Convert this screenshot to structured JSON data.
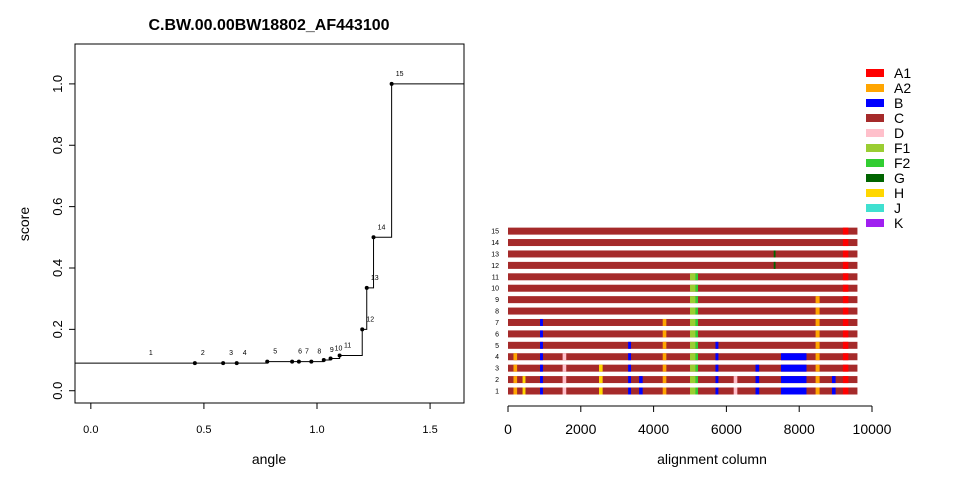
{
  "chart_data": [
    {
      "type": "line",
      "title": "C.BW.00.00BW18802_AF443100",
      "xlabel": "angle",
      "ylabel": "score",
      "xlim": [
        -0.07,
        1.65
      ],
      "ylim": [
        -0.04,
        1.13
      ],
      "xticks": [
        0.0,
        0.5,
        1.0,
        1.5
      ],
      "xtick_labels": [
        "0.0",
        "0.5",
        "1.0",
        "1.5"
      ],
      "yticks": [
        0.0,
        0.2,
        0.4,
        0.6,
        0.8,
        1.0
      ],
      "ytick_labels": [
        "0.0",
        "0.2",
        "0.4",
        "0.6",
        "0.8",
        "1.0"
      ],
      "step": "post",
      "baseline": 0.09,
      "points": [
        {
          "label": "1",
          "x": 0.23,
          "y": 0.09,
          "dot": false
        },
        {
          "label": "2",
          "x": 0.46,
          "y": 0.09,
          "dot": true
        },
        {
          "label": "3",
          "x": 0.585,
          "y": 0.09,
          "dot": true
        },
        {
          "label": "4",
          "x": 0.645,
          "y": 0.09,
          "dot": true
        },
        {
          "label": "5",
          "x": 0.78,
          "y": 0.095,
          "dot": true
        },
        {
          "label": "6",
          "x": 0.89,
          "y": 0.095,
          "dot": true
        },
        {
          "label": "7",
          "x": 0.92,
          "y": 0.095,
          "dot": true
        },
        {
          "label": "8",
          "x": 0.975,
          "y": 0.095,
          "dot": true
        },
        {
          "label": "9",
          "x": 1.03,
          "y": 0.1,
          "dot": true
        },
        {
          "label": "10",
          "x": 1.06,
          "y": 0.105,
          "dot": true
        },
        {
          "label": "11",
          "x": 1.1,
          "y": 0.115,
          "dot": true
        },
        {
          "label": "12",
          "x": 1.2,
          "y": 0.2,
          "dot": true
        },
        {
          "label": "13",
          "x": 1.22,
          "y": 0.335,
          "dot": true
        },
        {
          "label": "14",
          "x": 1.25,
          "y": 0.5,
          "dot": true
        },
        {
          "label": "15",
          "x": 1.33,
          "y": 1.0,
          "dot": true
        }
      ]
    },
    {
      "type": "heatmap",
      "xlabel": "alignment column",
      "xlim": [
        0,
        10000
      ],
      "xticks": [
        0,
        2000,
        4000,
        6000,
        8000,
        10000
      ],
      "xtick_labels": [
        "0",
        "2000",
        "4000",
        "6000",
        "8000",
        "10000"
      ],
      "alignment_length": 9600,
      "rows": [
        "1",
        "2",
        "3",
        "4",
        "5",
        "6",
        "7",
        "8",
        "9",
        "10",
        "11",
        "12",
        "13",
        "14",
        "15"
      ],
      "base_subtype": "C",
      "legend": [
        {
          "label": "A1",
          "color": "#ff0000"
        },
        {
          "label": "A2",
          "color": "#ffa500"
        },
        {
          "label": "B",
          "color": "#0000ff"
        },
        {
          "label": "C",
          "color": "#a52a2a"
        },
        {
          "label": "D",
          "color": "#ffc0cb"
        },
        {
          "label": "F1",
          "color": "#9acd32"
        },
        {
          "label": "F2",
          "color": "#32cd32"
        },
        {
          "label": "G",
          "color": "#006400"
        },
        {
          "label": "H",
          "color": "#ffd700"
        },
        {
          "label": "J",
          "color": "#40e0d0"
        },
        {
          "label": "K",
          "color": "#a020f0"
        }
      ],
      "segments": [
        {
          "rows": "1-15",
          "start": 9200,
          "end": 9350,
          "subtype": "A1"
        },
        {
          "rows": "1-11",
          "start": 5000,
          "end": 5150,
          "subtype": "F1"
        },
        {
          "rows": "1-11",
          "start": 5150,
          "end": 5220,
          "subtype": "F2"
        },
        {
          "rows": "1-9",
          "start": 8450,
          "end": 8560,
          "subtype": "A2"
        },
        {
          "rows": "1-7",
          "start": 880,
          "end": 960,
          "subtype": "B"
        },
        {
          "rows": "1-7",
          "start": 4250,
          "end": 4350,
          "subtype": "A2"
        },
        {
          "rows": "1-5",
          "start": 3300,
          "end": 3380,
          "subtype": "B"
        },
        {
          "rows": "1-5",
          "start": 5700,
          "end": 5780,
          "subtype": "B"
        },
        {
          "rows": "1-4",
          "start": 7500,
          "end": 8200,
          "subtype": "B"
        },
        {
          "rows": "1-4",
          "start": 150,
          "end": 250,
          "subtype": "A2"
        },
        {
          "rows": "1-4",
          "start": 1500,
          "end": 1600,
          "subtype": "D"
        },
        {
          "rows": "1-3",
          "start": 2500,
          "end": 2600,
          "subtype": "H"
        },
        {
          "rows": "1-3",
          "start": 6800,
          "end": 6900,
          "subtype": "B"
        },
        {
          "rows": "1-2",
          "start": 400,
          "end": 480,
          "subtype": "H"
        },
        {
          "rows": "1-2",
          "start": 3600,
          "end": 3700,
          "subtype": "B"
        },
        {
          "rows": "1-2",
          "start": 6200,
          "end": 6300,
          "subtype": "D"
        },
        {
          "rows": "1-2",
          "start": 8900,
          "end": 9000,
          "subtype": "B"
        },
        {
          "rows": "12-13",
          "start": 7300,
          "end": 7350,
          "subtype": "G"
        }
      ]
    }
  ]
}
